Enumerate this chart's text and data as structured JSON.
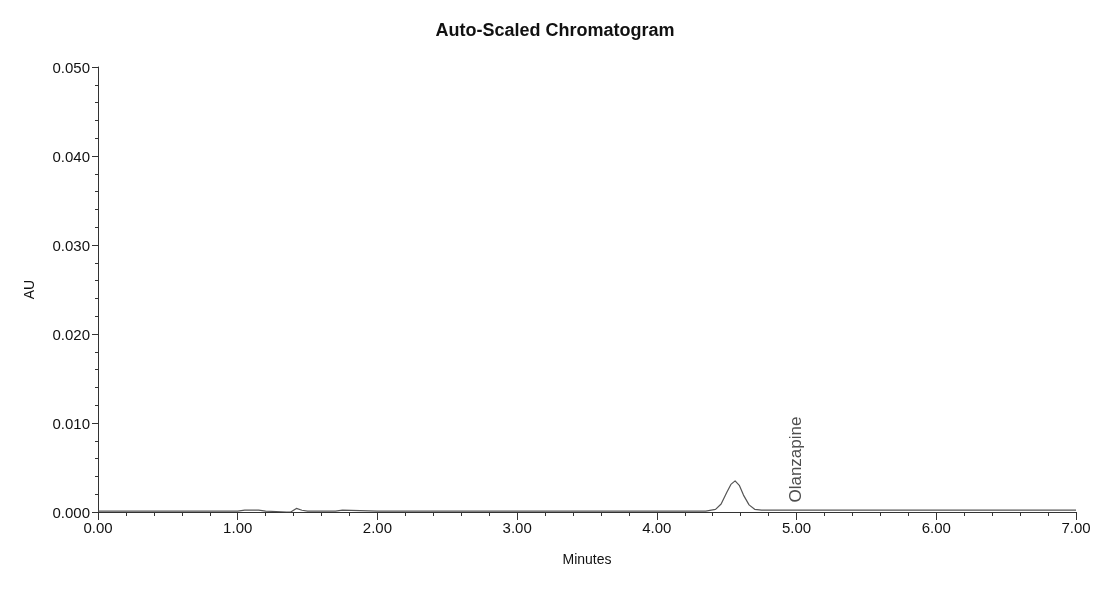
{
  "chart_data": {
    "type": "line",
    "title": "Auto-Scaled Chromatogram",
    "xlabel": "Minutes",
    "ylabel": "AU",
    "x": [
      0,
      0.5,
      1.0,
      1.05,
      1.15,
      1.2,
      1.35,
      1.38,
      1.42,
      1.46,
      1.5,
      1.7,
      1.75,
      2.0,
      3.0,
      4.0,
      4.35,
      4.42,
      4.46,
      4.5,
      4.53,
      4.56,
      4.59,
      4.62,
      4.66,
      4.7,
      4.75,
      5.0,
      6.0,
      7.0
    ],
    "series": [
      {
        "color": "#555555",
        "values": [
          0.0001,
          0.0001,
          0.0001,
          0.0002,
          0.0002,
          0.0001,
          0.0,
          0.0,
          0.0004,
          0.0002,
          0.0001,
          0.0001,
          0.0002,
          0.0001,
          0.0001,
          0.0001,
          0.0001,
          0.0003,
          0.0009,
          0.0022,
          0.0031,
          0.0035,
          0.003,
          0.0019,
          0.0008,
          0.0003,
          0.0002,
          0.0002,
          0.0002,
          0.0002
        ]
      }
    ],
    "xlim": [
      0,
      7
    ],
    "xticks": [
      {
        "value": 0,
        "label": "0.00"
      },
      {
        "value": 1,
        "label": "1.00"
      },
      {
        "value": 2,
        "label": "2.00"
      },
      {
        "value": 3,
        "label": "3.00"
      },
      {
        "value": 4,
        "label": "4.00"
      },
      {
        "value": 5,
        "label": "5.00"
      },
      {
        "value": 6,
        "label": "6.00"
      },
      {
        "value": 7,
        "label": "7.00"
      }
    ],
    "ylim": [
      0,
      0.05
    ],
    "yticks": [
      {
        "value": 0,
        "label": "0.000"
      },
      {
        "value": 0.01,
        "label": "0.010"
      },
      {
        "value": 0.02,
        "label": "0.020"
      },
      {
        "value": 0.03,
        "label": "0.030"
      },
      {
        "value": 0.04,
        "label": "0.040"
      },
      {
        "value": 0.05,
        "label": "0.050"
      }
    ],
    "annotations": [
      {
        "text": "Olanzapine",
        "x": 4.96,
        "y": 0.0005
      }
    ],
    "grid": false,
    "marker": "none",
    "line_style": "solid"
  }
}
